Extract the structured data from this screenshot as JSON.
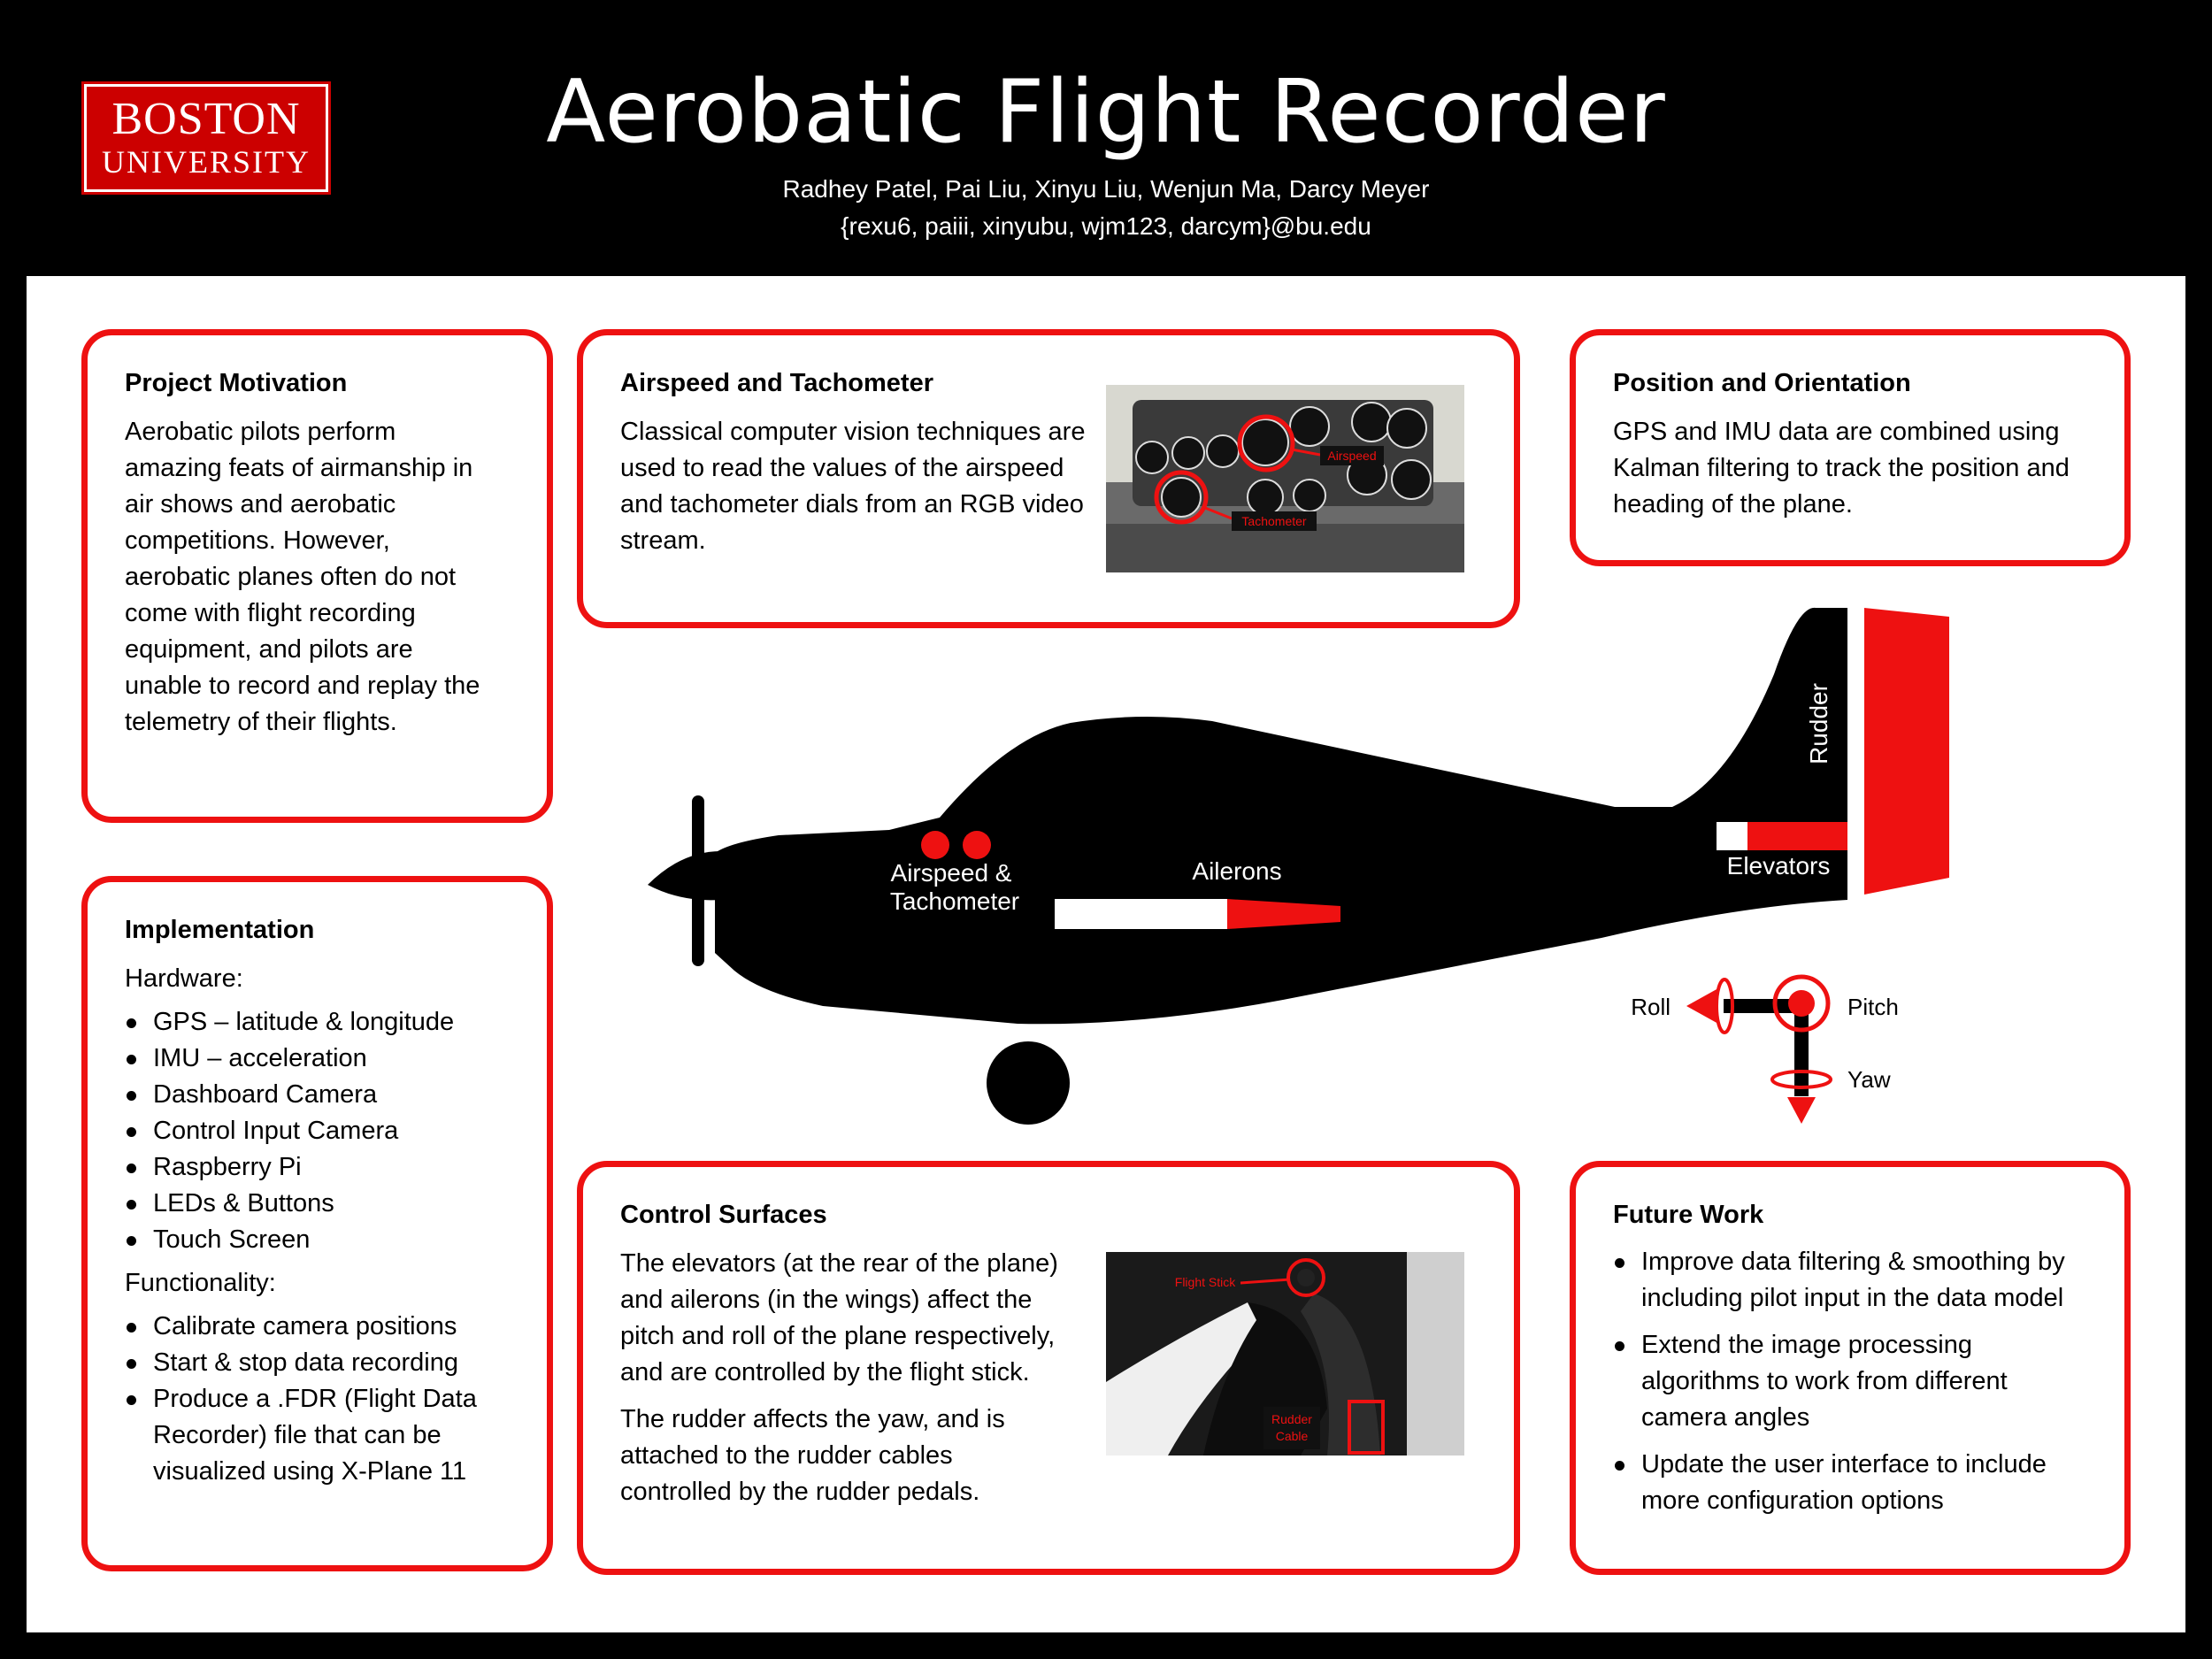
{
  "header": {
    "logo_line1": "BOSTON",
    "logo_line2": "UNIVERSITY",
    "title": "Aerobatic Flight Recorder",
    "authors": "Radhey Patel, Pai Liu, Xinyu Liu, Wenjun Ma, Darcy Meyer",
    "emails": "{rexu6, paiii, xinyubu, wjm123, darcym}@bu.edu"
  },
  "motivation": {
    "heading": "Project Motivation",
    "body": "Aerobatic pilots perform amazing feats of airmanship in air shows and aerobatic competitions. However, aerobatic planes often do not come with flight recording equipment, and pilots are unable to record and replay the telemetry of their flights."
  },
  "airspeed": {
    "heading": "Airspeed and Tachometer",
    "body": "Classical computer vision techniques are used to read the values of the airspeed and tachometer dials from an RGB video stream.",
    "photo_label_airspeed": "Airspeed",
    "photo_label_tachometer": "Tachometer"
  },
  "position": {
    "heading": "Position and Orientation",
    "body": "GPS and IMU data are combined using Kalman filtering to track the position and heading of the plane."
  },
  "implementation": {
    "heading": "Implementation",
    "hardware_label": "Hardware:",
    "hardware": [
      "GPS – latitude & longitude",
      "IMU – acceleration",
      "Dashboard Camera",
      "Control Input Camera",
      "Raspberry Pi",
      "LEDs & Buttons",
      "Touch Screen"
    ],
    "functionality_label": "Functionality:",
    "functionality": [
      "Calibrate camera positions",
      "Start & stop data recording",
      "Produce a .FDR (Flight Data Recorder) file that can be visualized using X-Plane 11"
    ]
  },
  "diagram": {
    "rudder": "Rudder",
    "elevators": "Elevators",
    "ailerons": "Ailerons",
    "airspeed_line1": "Airspeed &",
    "airspeed_line2": "Tachometer",
    "roll": "Roll",
    "pitch": "Pitch",
    "yaw": "Yaw",
    "accent_color": "#ee1111"
  },
  "control": {
    "heading": "Control Surfaces",
    "body1": "The elevators (at the rear of the plane) and ailerons (in the wings) affect the pitch and roll of the plane respectively, and are controlled by the flight stick.",
    "body2": "The rudder affects the yaw, and is attached to the rudder cables controlled by the rudder pedals.",
    "photo_label_stick": "Flight Stick",
    "photo_label_cable1": "Rudder",
    "photo_label_cable2": "Cable"
  },
  "future": {
    "heading": "Future Work",
    "items": [
      "Improve data filtering & smoothing by including pilot input in the data model",
      "Extend the image processing algorithms to work from different camera angles",
      "Update the user interface to include more configuration options"
    ]
  }
}
